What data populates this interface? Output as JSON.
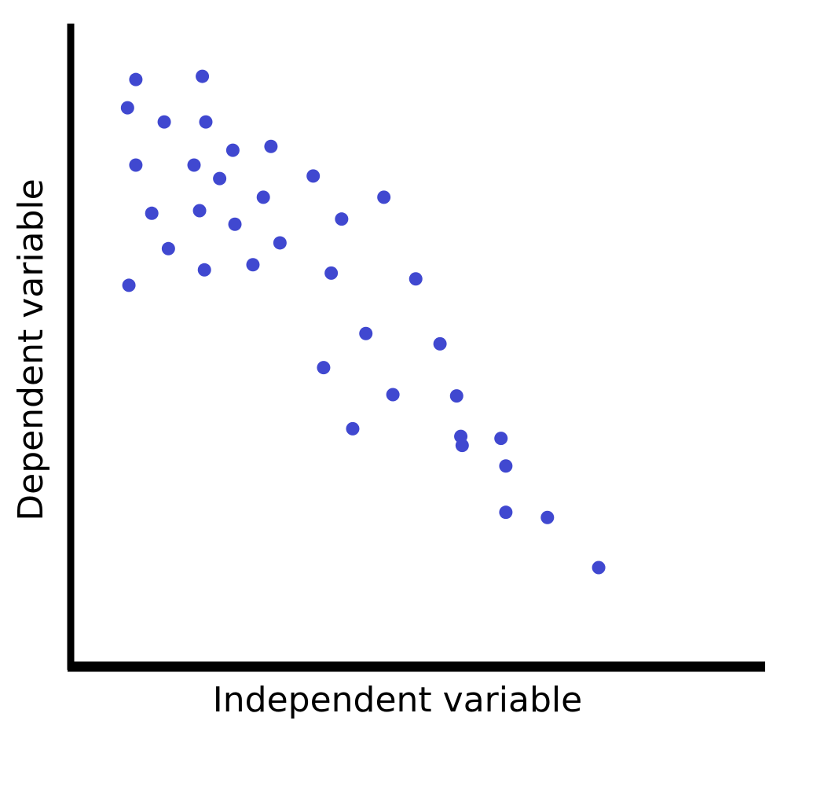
{
  "chart_data": {
    "type": "scatter",
    "x_label": "Independent variable",
    "y_label": "Dependent variable",
    "color": "#4048d0",
    "xlim": [
      0,
      100
    ],
    "ylim": [
      0,
      100
    ],
    "x": [
      9.4,
      19.0,
      8.2,
      13.5,
      19.5,
      23.4,
      28.9,
      9.4,
      17.8,
      21.5,
      35.0,
      27.8,
      45.2,
      11.7,
      18.6,
      23.7,
      39.1,
      14.1,
      30.2,
      19.3,
      26.3,
      37.6,
      8.4,
      49.8,
      42.6,
      53.3,
      36.5,
      46.5,
      55.7,
      40.7,
      56.3,
      56.5,
      62.1,
      62.8,
      62.8,
      68.8,
      76.2
    ],
    "values": [
      91.3,
      91.8,
      86.9,
      84.7,
      84.7,
      80.3,
      80.9,
      78.0,
      78.0,
      75.9,
      76.3,
      73.0,
      73.0,
      70.5,
      70.9,
      68.8,
      69.6,
      65.0,
      65.9,
      61.7,
      62.5,
      61.2,
      59.3,
      60.3,
      51.8,
      50.2,
      46.5,
      42.3,
      42.1,
      37.0,
      35.8,
      34.4,
      35.5,
      31.2,
      24.0,
      23.2,
      15.4
    ]
  }
}
